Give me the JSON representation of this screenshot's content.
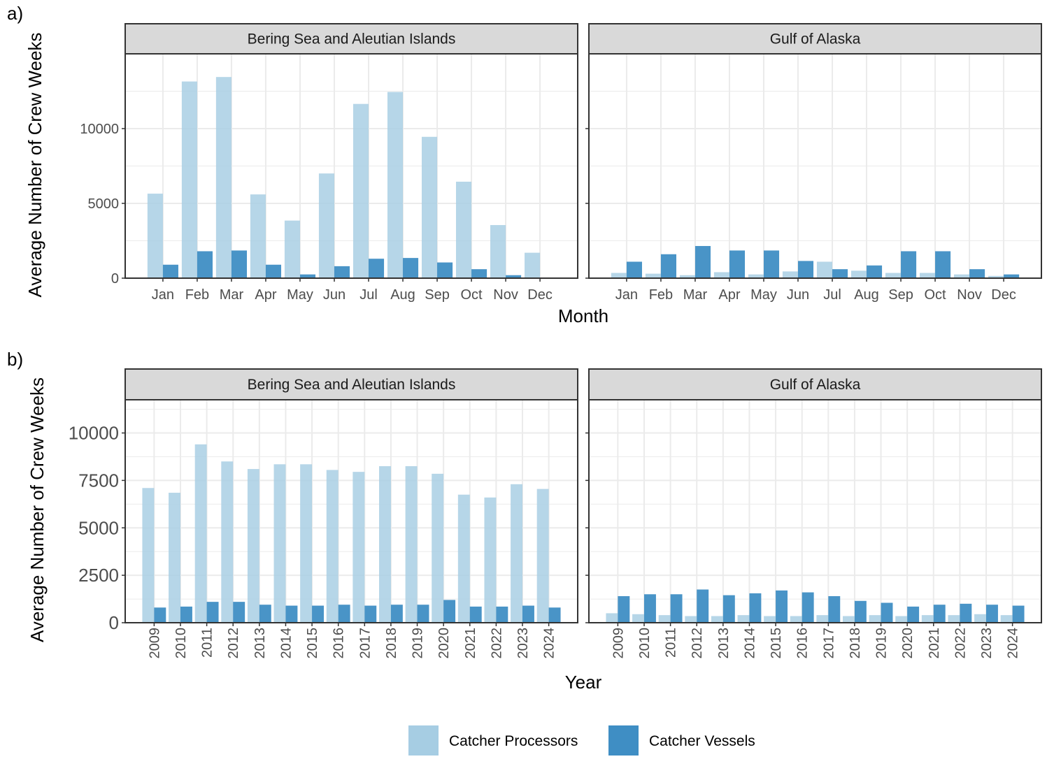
{
  "chart_data": [
    {
      "panel_tag": "a)",
      "type": "bar",
      "ylabel": "Average Number of Crew Weeks",
      "xlabel": "Month",
      "ylim": [
        0,
        15000
      ],
      "yticks": [
        0,
        5000,
        10000
      ],
      "categories": [
        "Jan",
        "Feb",
        "Mar",
        "Apr",
        "May",
        "Jun",
        "Jul",
        "Aug",
        "Sep",
        "Oct",
        "Nov",
        "Dec"
      ],
      "facets": [
        {
          "title": "Bering Sea and Aleutian Islands",
          "series": [
            {
              "name": "Catcher Processors",
              "values": [
                5650,
                13150,
                13450,
                5600,
                3850,
                7000,
                11650,
                12450,
                9450,
                6450,
                3550,
                1700
              ]
            },
            {
              "name": "Catcher Vessels",
              "values": [
                900,
                1800,
                1850,
                900,
                250,
                800,
                1300,
                1350,
                1050,
                600,
                200,
                0
              ]
            }
          ]
        },
        {
          "title": "Gulf of Alaska",
          "series": [
            {
              "name": "Catcher Processors",
              "values": [
                350,
                300,
                200,
                400,
                250,
                450,
                1100,
                500,
                350,
                350,
                250,
                150
              ]
            },
            {
              "name": "Catcher Vessels",
              "values": [
                1100,
                1600,
                2150,
                1850,
                1850,
                1150,
                600,
                850,
                1800,
                1800,
                600,
                250
              ]
            }
          ]
        }
      ]
    },
    {
      "panel_tag": "b)",
      "type": "bar",
      "ylabel": "Average Number of Crew Weeks",
      "xlabel": "Year",
      "ylim": [
        0,
        11750
      ],
      "yticks": [
        0,
        2500,
        5000,
        7500,
        10000
      ],
      "categories": [
        "2009",
        "2010",
        "2011",
        "2012",
        "2013",
        "2014",
        "2015",
        "2016",
        "2017",
        "2018",
        "2019",
        "2020",
        "2021",
        "2022",
        "2023",
        "2024"
      ],
      "facets": [
        {
          "title": "Bering Sea and Aleutian Islands",
          "series": [
            {
              "name": "Catcher Processors",
              "values": [
                7100,
                6850,
                9400,
                8500,
                8100,
                8350,
                8350,
                8050,
                7950,
                8250,
                8250,
                7850,
                6750,
                6600,
                7300,
                7050
              ]
            },
            {
              "name": "Catcher Vessels",
              "values": [
                800,
                850,
                1100,
                1100,
                950,
                900,
                900,
                950,
                900,
                950,
                950,
                1200,
                850,
                850,
                900,
                800
              ]
            }
          ]
        },
        {
          "title": "Gulf of Alaska",
          "series": [
            {
              "name": "Catcher Processors",
              "values": [
                500,
                450,
                400,
                350,
                350,
                400,
                350,
                350,
                400,
                350,
                400,
                350,
                400,
                400,
                450,
                400
              ]
            },
            {
              "name": "Catcher Vessels",
              "values": [
                1400,
                1500,
                1500,
                1750,
                1450,
                1550,
                1700,
                1600,
                1400,
                1150,
                1050,
                850,
                950,
                1000,
                950,
                900
              ]
            }
          ]
        }
      ]
    }
  ],
  "legend": {
    "position": "bottom",
    "items": [
      {
        "label": "Catcher Processors",
        "color": "#a6cde3"
      },
      {
        "label": "Catcher Vessels",
        "color": "#3f8ec4"
      }
    ]
  },
  "style": {
    "cp_color": "#a6cde3",
    "cv_color": "#3f8ec4",
    "strip_fill": "#d9d9d9",
    "grid_color": "#ebebeb"
  }
}
